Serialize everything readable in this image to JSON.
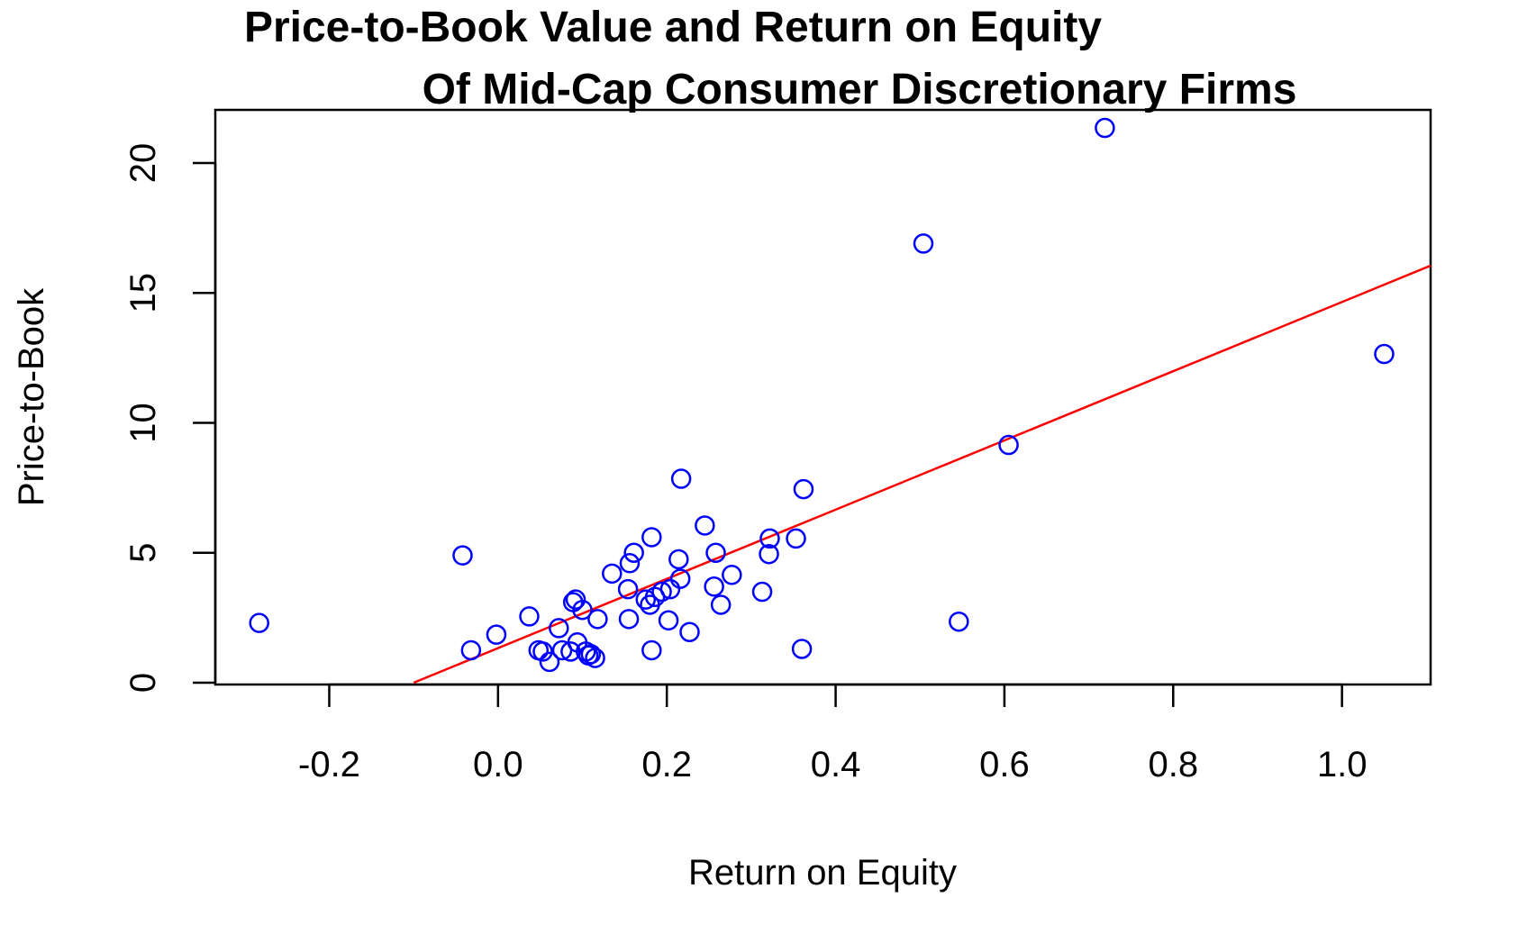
{
  "chart_data": {
    "type": "scatter",
    "title_lines": [
      "Price-to-Book Value and Return on Equity",
      "Of Mid-Cap Consumer Discretionary Firms"
    ],
    "xlabel": "Return on Equity",
    "ylabel": "Price-to-Book",
    "xlim": [
      -0.335,
      1.105
    ],
    "ylim": [
      0,
      22
    ],
    "x_ticks": [
      -0.2,
      0.0,
      0.2,
      0.4,
      0.6,
      0.8,
      1.0
    ],
    "x_tick_labels": [
      "-0.2",
      "0.0",
      "0.2",
      "0.4",
      "0.6",
      "0.8",
      "1.0"
    ],
    "y_ticks": [
      0,
      5,
      10,
      15,
      20
    ],
    "y_tick_labels": [
      "0",
      "5",
      "10",
      "15",
      "20"
    ],
    "point_color": "#0000ff",
    "line_color": "#ff0000",
    "points": [
      {
        "x": -0.283,
        "y": 2.3
      },
      {
        "x": -0.042,
        "y": 4.9
      },
      {
        "x": -0.032,
        "y": 1.25
      },
      {
        "x": -0.002,
        "y": 1.85
      },
      {
        "x": 0.037,
        "y": 2.55
      },
      {
        "x": 0.048,
        "y": 1.25
      },
      {
        "x": 0.053,
        "y": 1.2
      },
      {
        "x": 0.061,
        "y": 0.8
      },
      {
        "x": 0.072,
        "y": 2.1
      },
      {
        "x": 0.076,
        "y": 1.25
      },
      {
        "x": 0.086,
        "y": 1.2
      },
      {
        "x": 0.089,
        "y": 3.1
      },
      {
        "x": 0.092,
        "y": 3.2
      },
      {
        "x": 0.094,
        "y": 1.55
      },
      {
        "x": 0.1,
        "y": 2.8
      },
      {
        "x": 0.104,
        "y": 1.2
      },
      {
        "x": 0.107,
        "y": 1.05
      },
      {
        "x": 0.11,
        "y": 1.1
      },
      {
        "x": 0.115,
        "y": 0.95
      },
      {
        "x": 0.118,
        "y": 2.45
      },
      {
        "x": 0.135,
        "y": 4.2
      },
      {
        "x": 0.154,
        "y": 3.6
      },
      {
        "x": 0.155,
        "y": 2.45
      },
      {
        "x": 0.156,
        "y": 4.6
      },
      {
        "x": 0.161,
        "y": 5.0
      },
      {
        "x": 0.175,
        "y": 3.2
      },
      {
        "x": 0.18,
        "y": 3.0
      },
      {
        "x": 0.182,
        "y": 5.6
      },
      {
        "x": 0.182,
        "y": 1.25
      },
      {
        "x": 0.186,
        "y": 3.3
      },
      {
        "x": 0.194,
        "y": 3.5
      },
      {
        "x": 0.202,
        "y": 2.4
      },
      {
        "x": 0.204,
        "y": 3.6
      },
      {
        "x": 0.214,
        "y": 4.75
      },
      {
        "x": 0.216,
        "y": 4.0
      },
      {
        "x": 0.217,
        "y": 7.85
      },
      {
        "x": 0.227,
        "y": 1.95
      },
      {
        "x": 0.245,
        "y": 6.05
      },
      {
        "x": 0.256,
        "y": 3.7
      },
      {
        "x": 0.258,
        "y": 5.0
      },
      {
        "x": 0.264,
        "y": 3.0
      },
      {
        "x": 0.277,
        "y": 4.15
      },
      {
        "x": 0.313,
        "y": 3.5
      },
      {
        "x": 0.321,
        "y": 4.95
      },
      {
        "x": 0.322,
        "y": 5.55
      },
      {
        "x": 0.353,
        "y": 5.55
      },
      {
        "x": 0.36,
        "y": 1.3
      },
      {
        "x": 0.362,
        "y": 7.45
      },
      {
        "x": 0.504,
        "y": 16.9
      },
      {
        "x": 0.546,
        "y": 2.35
      },
      {
        "x": 0.605,
        "y": 9.15
      },
      {
        "x": 0.719,
        "y": 21.35
      },
      {
        "x": 1.05,
        "y": 12.65
      }
    ],
    "fit_line": {
      "x": [
        -0.1,
        1.105
      ],
      "y": [
        0,
        16.05
      ]
    }
  }
}
